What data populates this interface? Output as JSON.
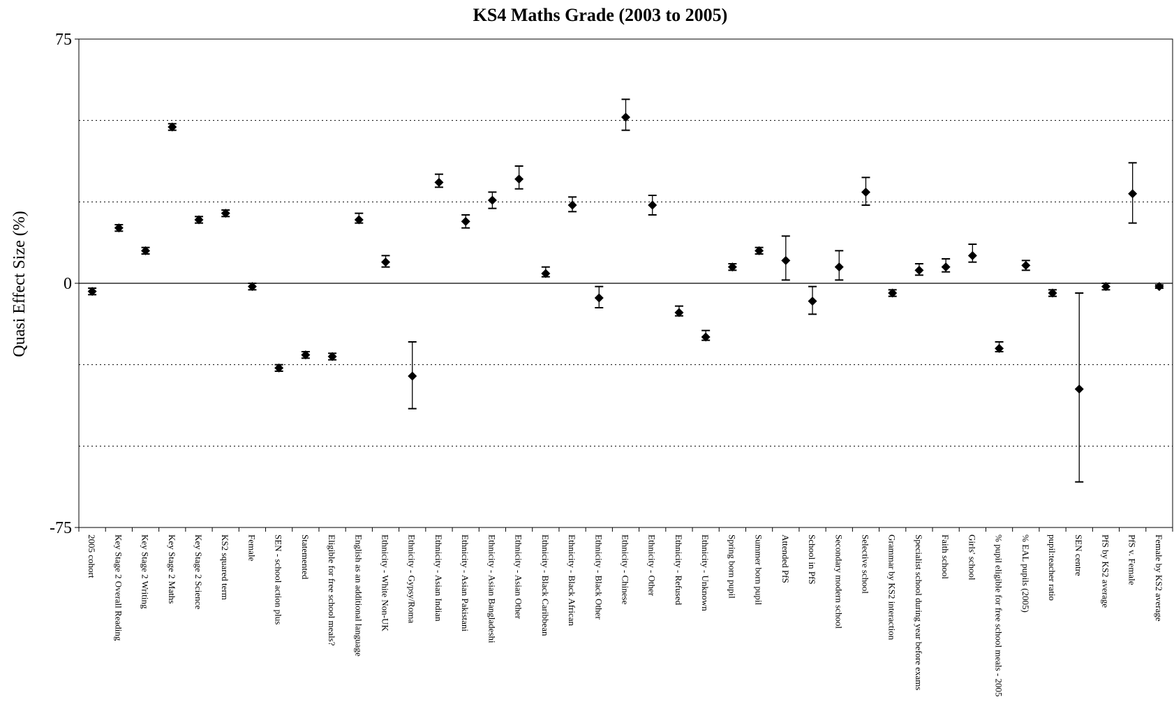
{
  "chart_data": {
    "type": "scatter",
    "title": "KS4 Maths Grade (2003 to 2005)",
    "xlabel": "",
    "ylabel": "Quasi Effect Size (%)",
    "ylim": [
      -75,
      75
    ],
    "yticks": [
      75,
      0,
      -75
    ],
    "grid": {
      "y_dotted": [
        50,
        25,
        -25,
        -50
      ],
      "zero_line": true
    },
    "legend": "none",
    "error_bars": true,
    "categories": [
      "2005 cohort",
      "Key Stage 2 Overall Reading",
      "Key Stage 2 Writing",
      "Key Stage 2 Maths",
      "Key Stage 2 Science",
      "KS2 squared term",
      "Female",
      "SEN - school action plus",
      "Statemented",
      "Eligible for free school meals?",
      "English as an additional language",
      "Ethnicity - White Non-UK",
      "Ethnicity - Gypsy/Roma",
      "Ethnicity - Asian Indian",
      "Ethnicity - Asian Pakistani",
      "Ethnicity - Asian Bangladeshi",
      "Ethnicity - Asian Other",
      "Ethnicity - Black Caribbean",
      "Ethnicity - Black African",
      "Ethnicity - Black Other",
      "Ethnicity - Chinese",
      "Ethnicity - Other",
      "Ethnicity - Refused",
      "Ethnicity - Unknown",
      "Spring born pupil",
      "Summer born pupil",
      "Attended PfS",
      "School in PfS",
      "Secondary modern school",
      "Selective school",
      "Grammar by KS2 interaction",
      "Specialist school during year before exams",
      "Faith school",
      "Girls' school",
      "% pupil eligible for free school meals - 2005",
      "% EAL pupils (2005)",
      "pupil:teacher ratio",
      "SEN centre",
      "PfS by KS2 average",
      "PfS v. Female",
      "Female by KS2 average"
    ],
    "values": [
      -2.5,
      17,
      10,
      48,
      19.5,
      21.5,
      -1,
      -26,
      -22,
      -22.5,
      19.5,
      6.5,
      -28.5,
      31,
      19,
      25.5,
      32,
      3,
      24,
      -4.5,
      51,
      24,
      -9,
      -16.5,
      5,
      10,
      7,
      -5.5,
      5,
      28,
      -3,
      4,
      5,
      8.5,
      -20,
      5.5,
      -3,
      -32.5,
      -1,
      27.5,
      -1
    ],
    "lower": [
      -3.5,
      16,
      9,
      47,
      18.5,
      20.5,
      -2,
      -27,
      -23,
      -23.5,
      18.5,
      5,
      -38.5,
      29.5,
      17,
      23,
      29,
      2,
      22,
      -7.5,
      47,
      21,
      -10,
      -17.5,
      4,
      9,
      1,
      -9.5,
      1,
      24,
      -4,
      2.5,
      3.5,
      6.5,
      -21,
      4,
      -4,
      -61,
      -2,
      18.5,
      -1.5
    ],
    "upper": [
      -1.5,
      18,
      11,
      49,
      20.5,
      22.5,
      0,
      -25,
      -21,
      -21.5,
      21.5,
      8.5,
      -18,
      33.5,
      21,
      28,
      36,
      5,
      26.5,
      -1,
      56.5,
      27,
      -7,
      -14.5,
      6,
      11,
      14.5,
      -1,
      10,
      32.5,
      -2,
      6,
      7.5,
      12,
      -18,
      7,
      -2,
      -3,
      0,
      37,
      -0.5
    ]
  }
}
